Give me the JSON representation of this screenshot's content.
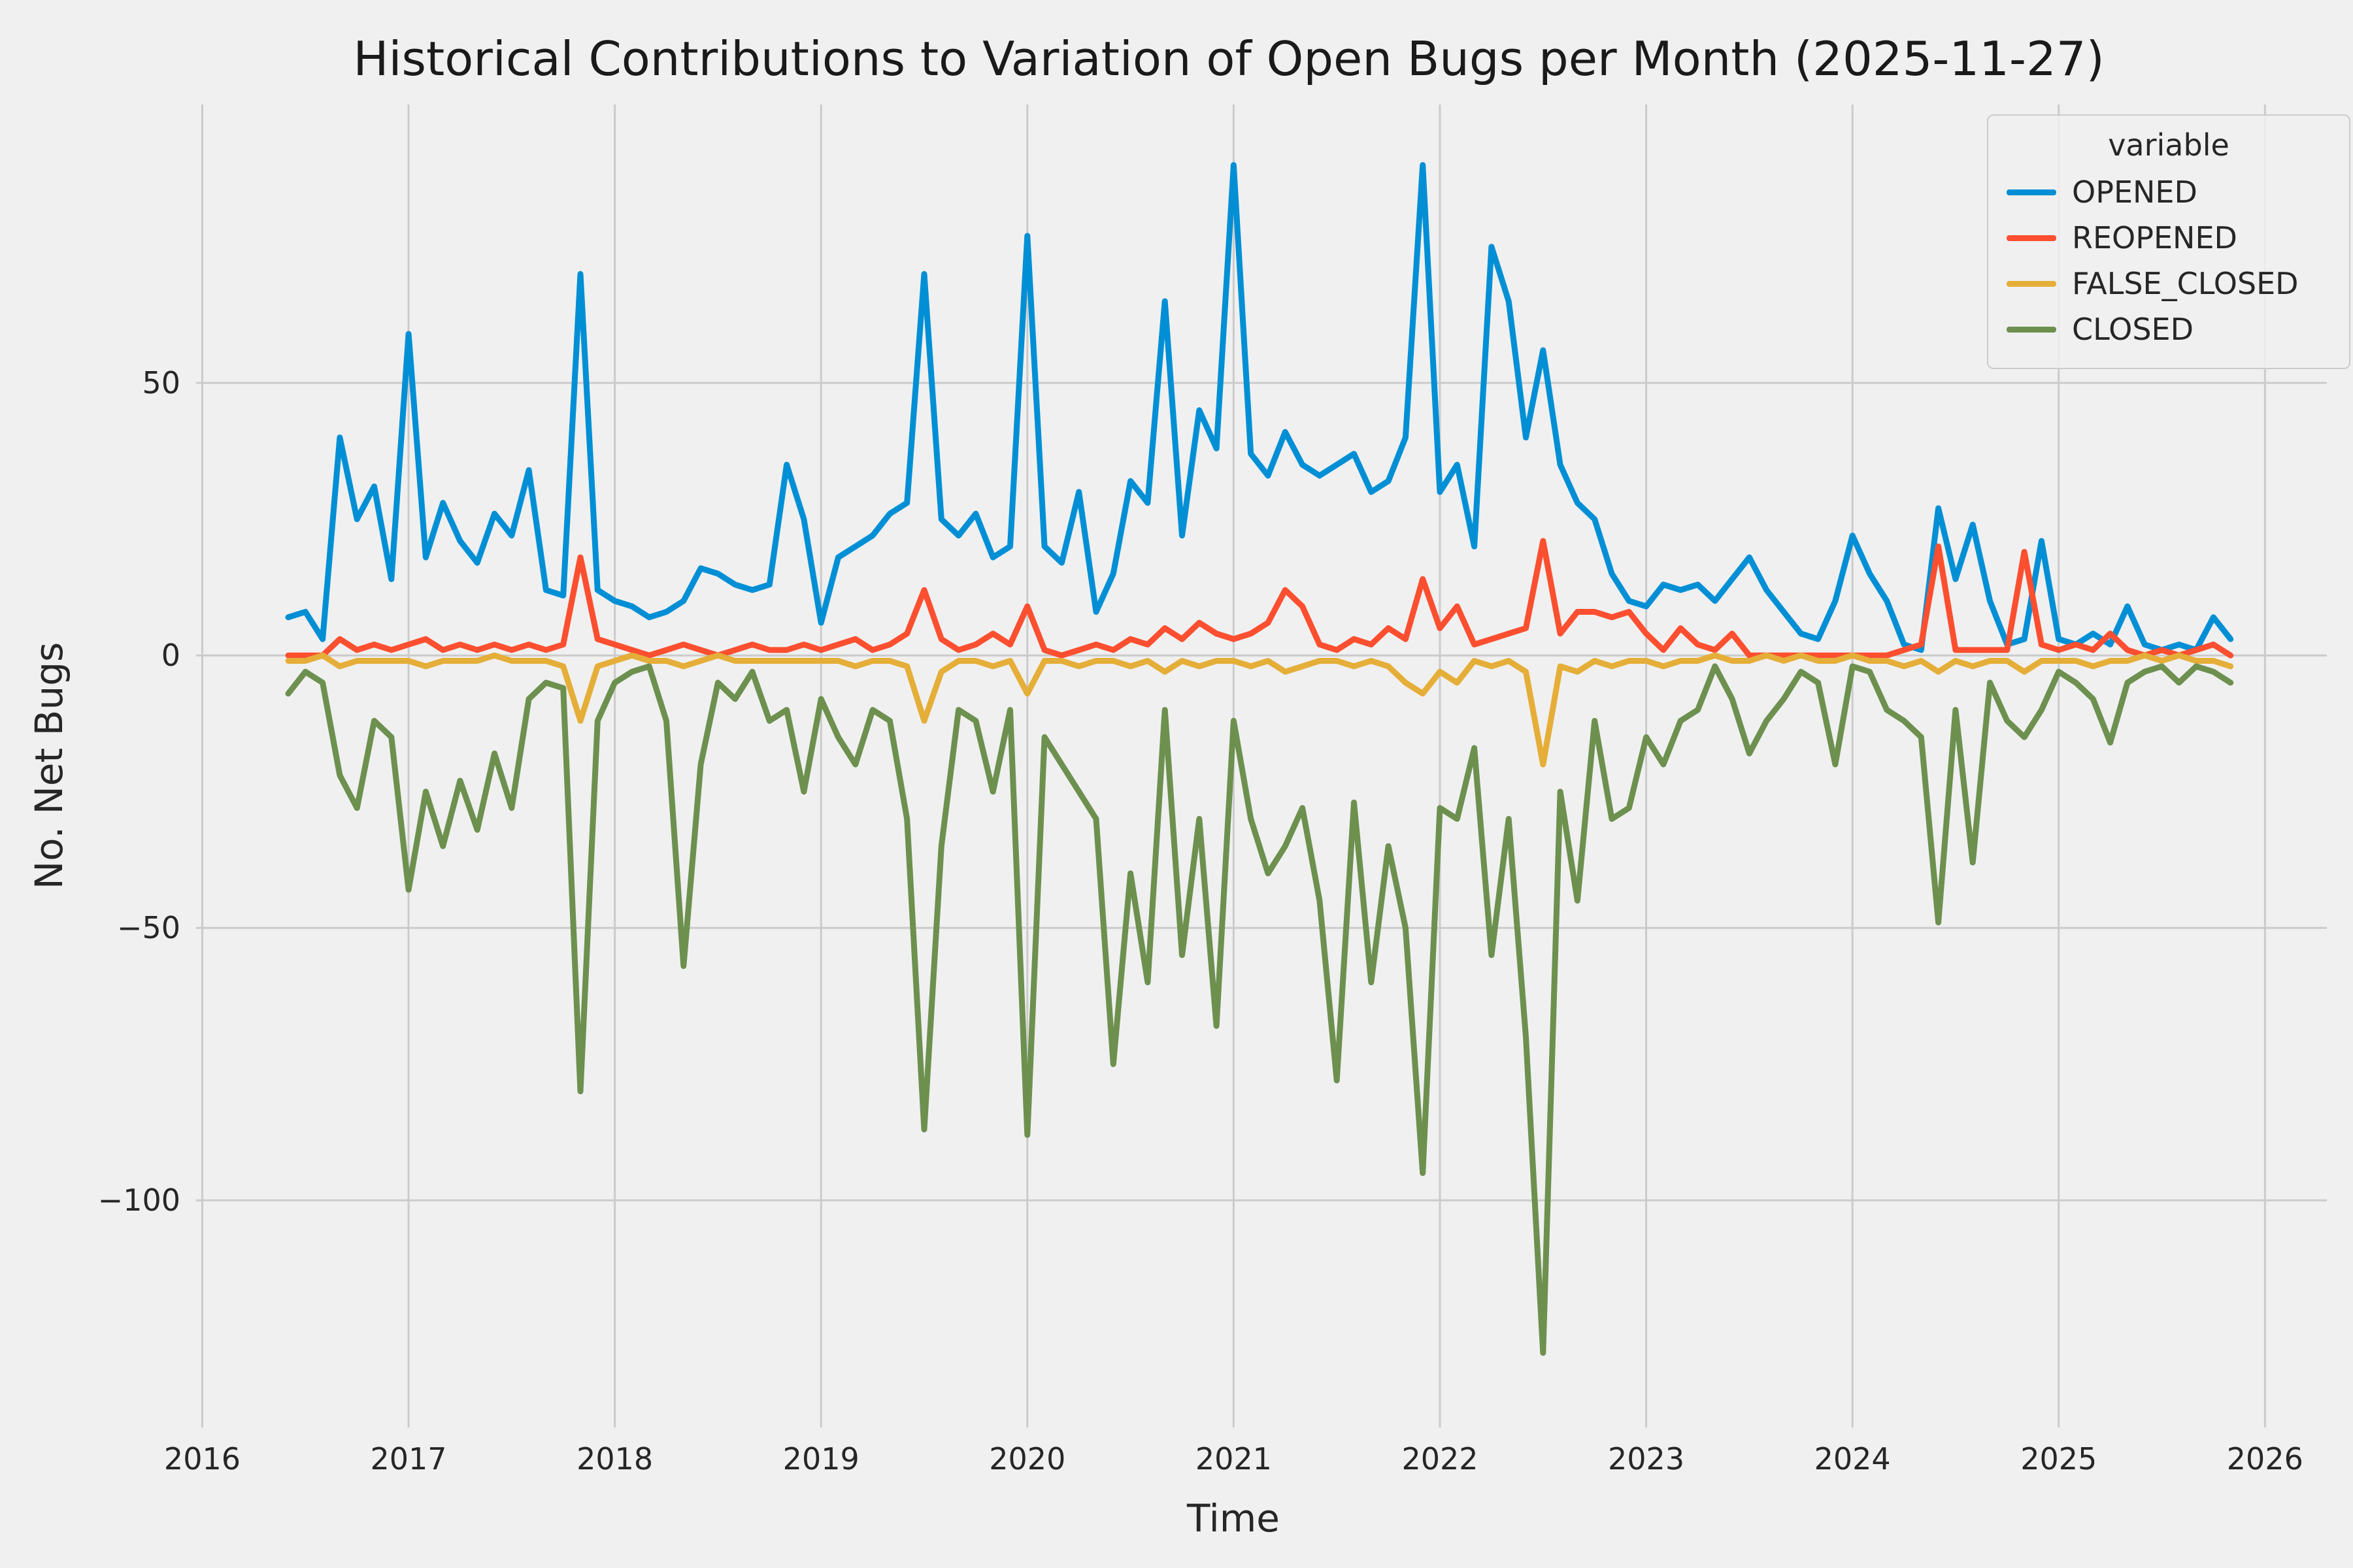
{
  "chart_data": {
    "type": "line",
    "title": "Historical Contributions to Variation of Open Bugs per Month (2025-11-27)",
    "xlabel": "Time",
    "ylabel": "No. Net Bugs",
    "legend": {
      "title": "variable",
      "position": "upper right",
      "entries": [
        "OPENED",
        "REOPENED",
        "FALSE_CLOSED",
        "CLOSED"
      ]
    },
    "grid": true,
    "xlim": [
      2015.97,
      2026.3
    ],
    "ylim": [
      -141.7,
      101.1
    ],
    "xticks": {
      "values": [
        2016,
        2017,
        2018,
        2019,
        2020,
        2021,
        2022,
        2023,
        2024,
        2025,
        2026
      ],
      "labels": [
        "2016",
        "2017",
        "2018",
        "2019",
        "2020",
        "2021",
        "2022",
        "2023",
        "2024",
        "2025",
        "2026"
      ]
    },
    "yticks": {
      "values": [
        50,
        0,
        -50,
        -100
      ],
      "labels": [
        "50",
        "0",
        "−50",
        "−100"
      ]
    },
    "styles": {
      "background": "#f0f0f0",
      "grid_color": "#cbcbcb",
      "text_color": "#262626"
    },
    "x_months": [
      "2016-06",
      "2016-07",
      "2016-08",
      "2016-09",
      "2016-10",
      "2016-11",
      "2016-12",
      "2017-01",
      "2017-02",
      "2017-03",
      "2017-04",
      "2017-05",
      "2017-06",
      "2017-07",
      "2017-08",
      "2017-09",
      "2017-10",
      "2017-11",
      "2017-12",
      "2018-01",
      "2018-02",
      "2018-03",
      "2018-04",
      "2018-05",
      "2018-06",
      "2018-07",
      "2018-08",
      "2018-09",
      "2018-10",
      "2018-11",
      "2018-12",
      "2019-01",
      "2019-02",
      "2019-03",
      "2019-04",
      "2019-05",
      "2019-06",
      "2019-07",
      "2019-08",
      "2019-09",
      "2019-10",
      "2019-11",
      "2019-12",
      "2020-01",
      "2020-02",
      "2020-03",
      "2020-04",
      "2020-05",
      "2020-06",
      "2020-07",
      "2020-08",
      "2020-09",
      "2020-10",
      "2020-11",
      "2020-12",
      "2021-01",
      "2021-02",
      "2021-03",
      "2021-04",
      "2021-05",
      "2021-06",
      "2021-07",
      "2021-08",
      "2021-09",
      "2021-10",
      "2021-11",
      "2021-12",
      "2022-01",
      "2022-02",
      "2022-03",
      "2022-04",
      "2022-05",
      "2022-06",
      "2022-07",
      "2022-08",
      "2022-09",
      "2022-10",
      "2022-11",
      "2022-12",
      "2023-01",
      "2023-02",
      "2023-03",
      "2023-04",
      "2023-05",
      "2023-06",
      "2023-07",
      "2023-08",
      "2023-09",
      "2023-10",
      "2023-11",
      "2023-12",
      "2024-01",
      "2024-02",
      "2024-03",
      "2024-04",
      "2024-05",
      "2024-06",
      "2024-07",
      "2024-08",
      "2024-09",
      "2024-10",
      "2024-11",
      "2024-12",
      "2025-01",
      "2025-02",
      "2025-03",
      "2025-04",
      "2025-05",
      "2025-06",
      "2025-07",
      "2025-08",
      "2025-09",
      "2025-10",
      "2025-11"
    ],
    "series": [
      {
        "name": "OPENED",
        "color": "#008fd5",
        "values": [
          7,
          8,
          3,
          40,
          25,
          31,
          14,
          59,
          18,
          28,
          21,
          17,
          26,
          22,
          34,
          12,
          11,
          70,
          12,
          10,
          9,
          7,
          8,
          10,
          16,
          15,
          13,
          12,
          13,
          35,
          25,
          6,
          18,
          20,
          22,
          26,
          28,
          70,
          25,
          22,
          26,
          18,
          20,
          77,
          20,
          17,
          30,
          8,
          15,
          32,
          28,
          65,
          22,
          45,
          38,
          90,
          37,
          33,
          41,
          35,
          33,
          35,
          37,
          30,
          32,
          40,
          90,
          30,
          35,
          20,
          75,
          65,
          40,
          56,
          35,
          28,
          25,
          15,
          10,
          9,
          13,
          12,
          13,
          10,
          14,
          18,
          12,
          8,
          4,
          3,
          10,
          22,
          15,
          10,
          2,
          1,
          27,
          14,
          24,
          10,
          2,
          3,
          21,
          3,
          2,
          4,
          2,
          9,
          2,
          1,
          2,
          1,
          7,
          3
        ]
      },
      {
        "name": "REOPENED",
        "color": "#fc4f30",
        "values": [
          0,
          0,
          0,
          3,
          1,
          2,
          1,
          2,
          3,
          1,
          2,
          1,
          2,
          1,
          2,
          1,
          2,
          18,
          3,
          2,
          1,
          0,
          1,
          2,
          1,
          0,
          1,
          2,
          1,
          1,
          2,
          1,
          2,
          3,
          1,
          2,
          4,
          12,
          3,
          1,
          2,
          4,
          2,
          9,
          1,
          0,
          1,
          2,
          1,
          3,
          2,
          5,
          3,
          6,
          4,
          3,
          4,
          6,
          12,
          9,
          2,
          1,
          3,
          2,
          5,
          3,
          14,
          5,
          9,
          2,
          3,
          4,
          5,
          21,
          4,
          8,
          8,
          7,
          8,
          4,
          1,
          5,
          2,
          1,
          4,
          0,
          0,
          0,
          0,
          0,
          0,
          0,
          0,
          0,
          1,
          2,
          20,
          1,
          1,
          1,
          1,
          19,
          2,
          1,
          2,
          1,
          4,
          1,
          0,
          1,
          0,
          1,
          2,
          0
        ]
      },
      {
        "name": "FALSE_CLOSED",
        "color": "#e5ae38",
        "values": [
          -1,
          -1,
          0,
          -2,
          -1,
          -1,
          -1,
          -1,
          -2,
          -1,
          -1,
          -1,
          0,
          -1,
          -1,
          -1,
          -2,
          -12,
          -2,
          -1,
          0,
          -1,
          -1,
          -2,
          -1,
          0,
          -1,
          -1,
          -1,
          -1,
          -1,
          -1,
          -1,
          -2,
          -1,
          -1,
          -2,
          -12,
          -3,
          -1,
          -1,
          -2,
          -1,
          -7,
          -1,
          -1,
          -2,
          -1,
          -1,
          -2,
          -1,
          -3,
          -1,
          -2,
          -1,
          -1,
          -2,
          -1,
          -3,
          -2,
          -1,
          -1,
          -2,
          -1,
          -2,
          -5,
          -7,
          -3,
          -5,
          -1,
          -2,
          -1,
          -3,
          -20,
          -2,
          -3,
          -1,
          -2,
          -1,
          -1,
          -2,
          -1,
          -1,
          0,
          -1,
          -1,
          0,
          -1,
          0,
          -1,
          -1,
          0,
          -1,
          -1,
          -2,
          -1,
          -3,
          -1,
          -2,
          -1,
          -1,
          -3,
          -1,
          -1,
          -1,
          -2,
          -1,
          -1,
          0,
          -1,
          0,
          -1,
          -1,
          -2
        ]
      },
      {
        "name": "CLOSED",
        "color": "#6d904f",
        "values": [
          -7,
          -3,
          -5,
          -22,
          -28,
          -12,
          -15,
          -43,
          -25,
          -35,
          -23,
          -32,
          -18,
          -28,
          -8,
          -5,
          -6,
          -80,
          -12,
          -5,
          -3,
          -2,
          -12,
          -57,
          -20,
          -5,
          -8,
          -3,
          -12,
          -10,
          -25,
          -8,
          -15,
          -20,
          -10,
          -12,
          -30,
          -87,
          -35,
          -10,
          -12,
          -25,
          -10,
          -88,
          -15,
          -20,
          -25,
          -30,
          -75,
          -40,
          -60,
          -10,
          -55,
          -30,
          -68,
          -12,
          -30,
          -40,
          -35,
          -28,
          -45,
          -78,
          -27,
          -60,
          -35,
          -50,
          -95,
          -28,
          -30,
          -17,
          -55,
          -30,
          -70,
          -128,
          -25,
          -45,
          -12,
          -30,
          -28,
          -15,
          -20,
          -12,
          -10,
          -2,
          -8,
          -18,
          -12,
          -8,
          -3,
          -5,
          -20,
          -2,
          -3,
          -10,
          -12,
          -15,
          -49,
          -10,
          -38,
          -5,
          -12,
          -15,
          -10,
          -3,
          -5,
          -8,
          -16,
          -5,
          -3,
          -2,
          -5,
          -2,
          -3,
          -5
        ]
      }
    ]
  }
}
